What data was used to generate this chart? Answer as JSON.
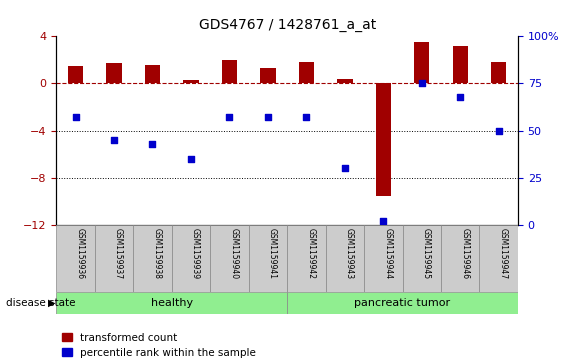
{
  "title": "GDS4767 / 1428761_a_at",
  "samples": [
    "GSM1159936",
    "GSM1159937",
    "GSM1159938",
    "GSM1159939",
    "GSM1159940",
    "GSM1159941",
    "GSM1159942",
    "GSM1159943",
    "GSM1159944",
    "GSM1159945",
    "GSM1159946",
    "GSM1159947"
  ],
  "transformed_count": [
    1.5,
    1.7,
    1.6,
    0.3,
    2.0,
    1.3,
    1.8,
    0.4,
    -9.5,
    3.5,
    3.2,
    1.8
  ],
  "percentile_rank": [
    57,
    45,
    43,
    35,
    57,
    57,
    57,
    30,
    2,
    75,
    68,
    50
  ],
  "healthy_count": 6,
  "groups": [
    "healthy",
    "pancreatic tumor"
  ],
  "bar_color_red": "#A00000",
  "dot_color_blue": "#0000CC",
  "ylim_left": [
    -12,
    4
  ],
  "ylim_right": [
    0,
    100
  ],
  "yticks_left": [
    -12,
    -8,
    -4,
    0,
    4
  ],
  "yticks_right": [
    0,
    25,
    50,
    75,
    100
  ],
  "hline_y": 0,
  "dotted_lines": [
    -4,
    -8
  ],
  "bg_color": "#FFFFFF",
  "tick_bg": "#CCCCCC",
  "green_band": "#90EE90",
  "legend_items": [
    "transformed count",
    "percentile rank within the sample"
  ],
  "bar_width": 0.4
}
